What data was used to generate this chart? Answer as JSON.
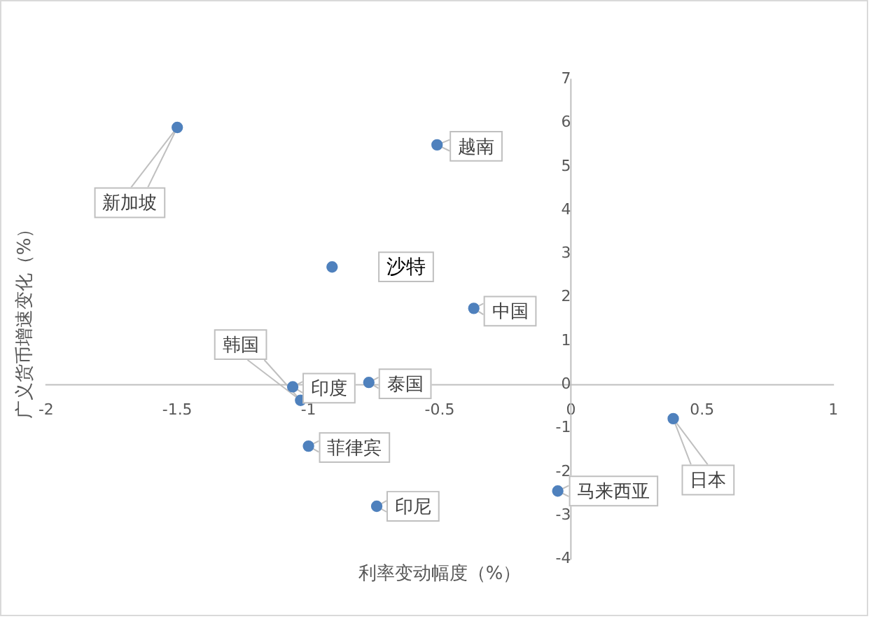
{
  "chart_data": {
    "type": "scatter",
    "xlabel": "利率变动幅度（%）",
    "ylabel": "广义货币增速变化（%）",
    "x": [
      -1.5,
      -0.51,
      -0.91,
      -0.37,
      -1.03,
      -1.06,
      -0.77,
      -1.0,
      -0.74,
      -0.05,
      0.39
    ],
    "values": [
      5.9,
      5.5,
      2.7,
      1.75,
      -0.36,
      -0.05,
      0.05,
      -1.41,
      -2.79,
      -2.44,
      -0.78
    ],
    "color": "#4f81bd",
    "marker": "circle",
    "xlim": [
      -2,
      1
    ],
    "xticks": [
      -2,
      -1.5,
      -1,
      -0.5,
      0,
      0.5,
      1
    ],
    "ylim": [
      -4,
      7
    ],
    "yticks": [
      -4,
      -3,
      -2,
      -1,
      0,
      1,
      2,
      3,
      4,
      5,
      6,
      7
    ],
    "annotations": [
      {
        "text": "新加坡",
        "x": -1.5,
        "y": 5.9
      },
      {
        "text": "越南",
        "x": -0.51,
        "y": 5.5
      },
      {
        "text": "沙特",
        "x": -0.91,
        "y": 2.7
      },
      {
        "text": "中国",
        "x": -0.37,
        "y": 1.75
      },
      {
        "text": "韩国",
        "x": -1.03,
        "y": -0.36
      },
      {
        "text": "印度",
        "x": -1.06,
        "y": -0.05
      },
      {
        "text": "泰国",
        "x": -0.77,
        "y": 0.05
      },
      {
        "text": "菲律宾",
        "x": -1.0,
        "y": -1.41
      },
      {
        "text": "印尼",
        "x": -0.74,
        "y": -2.79
      },
      {
        "text": "马来西亚",
        "x": -0.05,
        "y": -2.44
      },
      {
        "text": "日本",
        "x": 0.39,
        "y": -0.78
      }
    ]
  }
}
